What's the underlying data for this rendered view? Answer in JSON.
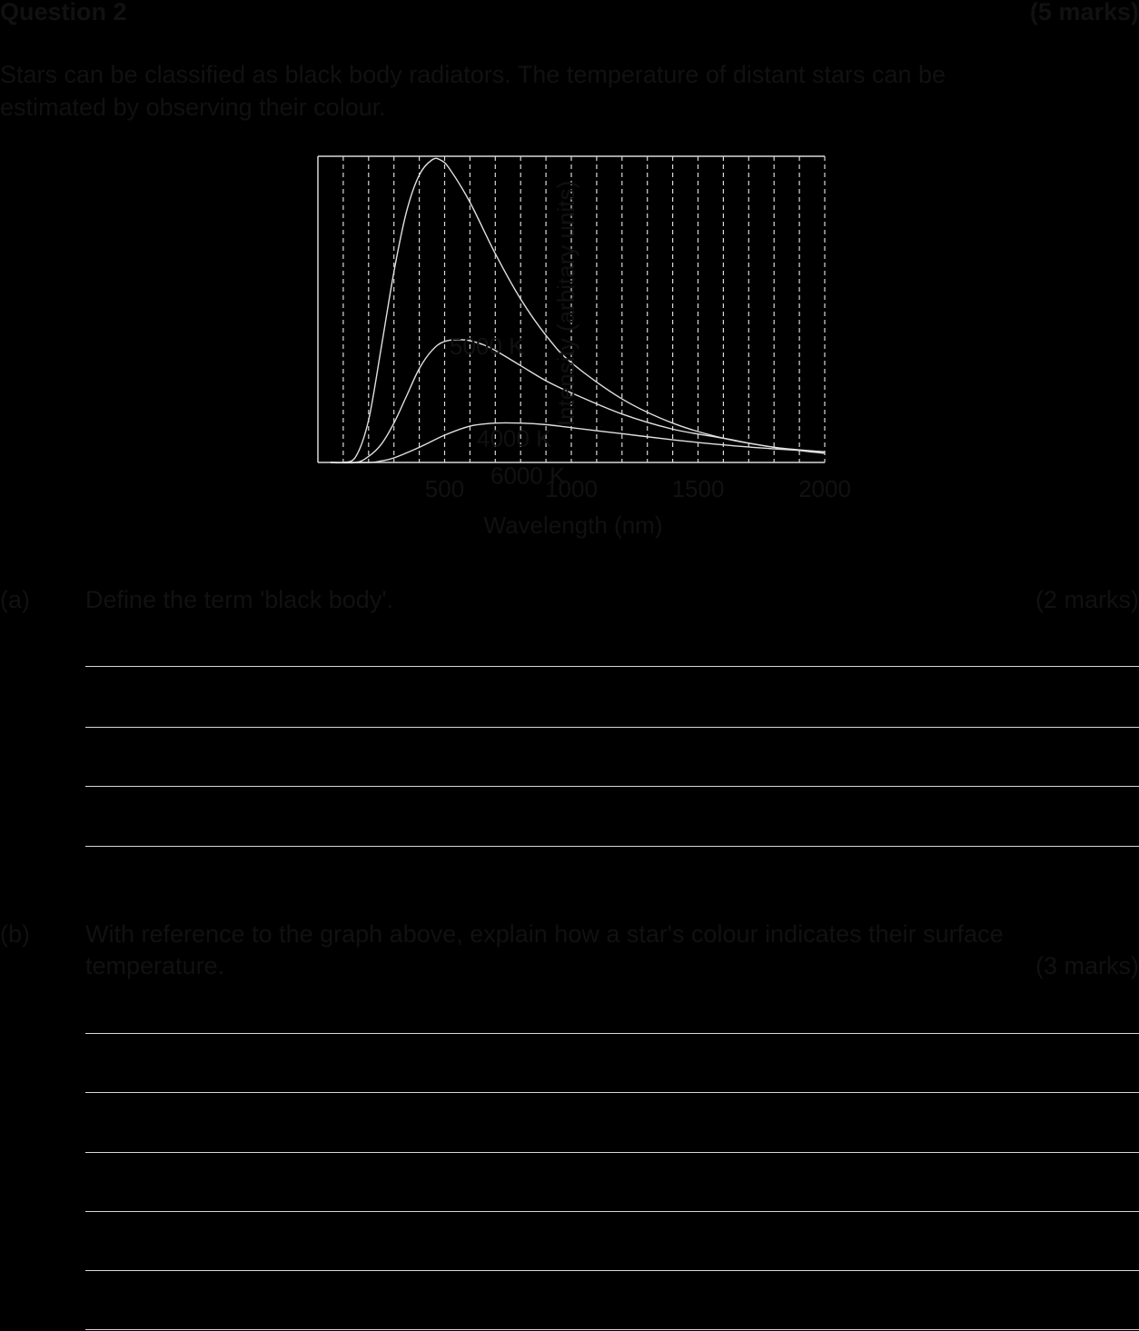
{
  "question": {
    "title": "Question 2",
    "marks": "(5 marks)",
    "intro_line1": "Stars can be classified as black body radiators. The temperature of distant stars can be",
    "intro_line2": "estimated by observing their colour."
  },
  "part_a": {
    "label": "(a)",
    "text": "Define the term 'black body'.",
    "marks": "(2 marks)",
    "answer_lines": 4
  },
  "part_b": {
    "label": "(b)",
    "text_line1": "With reference to the graph above, explain how a star's colour indicates their surface",
    "text_line2": "temperature.",
    "marks": "(3 marks)",
    "answer_lines": 6
  },
  "colors": {
    "background": "#000000",
    "text": "#111111",
    "lines": "#d8d8d8"
  },
  "chart_data": {
    "type": "line",
    "title": "",
    "xlabel": "Wavelength (nm)",
    "ylabel": "Intensity (arbitary units)",
    "xlim": [
      0,
      2000
    ],
    "ylim": [
      0,
      1
    ],
    "x_ticks": [
      500,
      1000,
      1500,
      2000
    ],
    "x_gridlines": [
      100,
      200,
      300,
      400,
      500,
      600,
      700,
      800,
      900,
      1000,
      1100,
      1200,
      1300,
      1400,
      1500,
      1600,
      1700,
      1800,
      1900,
      2000
    ],
    "grid": "vertical dashed",
    "y_ticks_labeled": false,
    "series": [
      {
        "label": "6000 K",
        "x": [
          100,
          150,
          200,
          250,
          300,
          350,
          400,
          450,
          483,
          520,
          600,
          700,
          800,
          900,
          1000,
          1200,
          1400,
          1600,
          1800,
          2000
        ],
        "y": [
          0.0,
          0.02,
          0.14,
          0.38,
          0.63,
          0.83,
          0.95,
          1.0,
          1.0,
          0.97,
          0.86,
          0.69,
          0.54,
          0.42,
          0.33,
          0.21,
          0.13,
          0.08,
          0.05,
          0.03
        ]
      },
      {
        "label": "5000 K",
        "x": [
          150,
          200,
          250,
          300,
          350,
          400,
          450,
          500,
          580,
          650,
          700,
          800,
          900,
          1000,
          1200,
          1400,
          1600,
          1800,
          2000
        ],
        "y": [
          0.0,
          0.02,
          0.06,
          0.13,
          0.22,
          0.31,
          0.37,
          0.4,
          0.405,
          0.39,
          0.37,
          0.32,
          0.27,
          0.23,
          0.16,
          0.11,
          0.08,
          0.05,
          0.035
        ]
      },
      {
        "label": "4000 K",
        "x": [
          200,
          250,
          300,
          400,
          500,
          600,
          700,
          800,
          900,
          1000,
          1200,
          1400,
          1600,
          1800,
          2000
        ],
        "y": [
          0.0,
          0.005,
          0.015,
          0.05,
          0.09,
          0.12,
          0.13,
          0.13,
          0.125,
          0.115,
          0.095,
          0.075,
          0.058,
          0.045,
          0.035
        ]
      }
    ]
  }
}
